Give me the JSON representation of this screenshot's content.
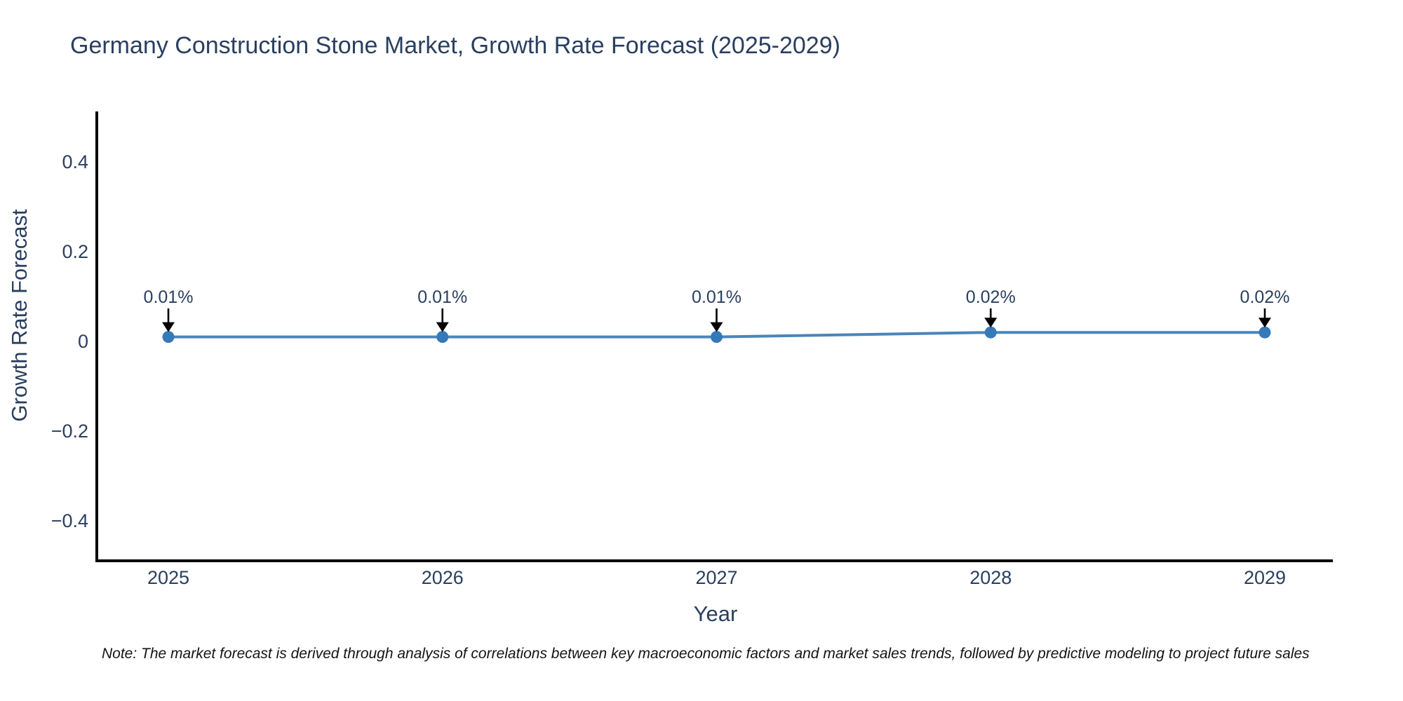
{
  "title": "Germany Construction Stone Market, Growth Rate Forecast (2025-2029)",
  "note": {
    "text": "Note: The market forecast is derived through analysis of correlations between key macroeconomic factors and market sales trends, followed by predictive modeling to project future sales"
  },
  "colors": {
    "title_text": "#2a3f5f",
    "axis_text": "#2a3f5f",
    "axis_line": "#000000",
    "series_line": "#4a85ba",
    "marker": "#3679b9",
    "arrow": "#000000",
    "annotation_text": "#2a3f5f",
    "note_text": "#141414",
    "background": "#ffffff"
  },
  "chart_data": {
    "type": "line",
    "title": "Germany Construction Stone Market, Growth Rate Forecast (2025-2029)",
    "xlabel": "Year",
    "ylabel": "Growth Rate Forecast",
    "categories": [
      "2025",
      "2026",
      "2027",
      "2028",
      "2029"
    ],
    "values": [
      0.01,
      0.01,
      0.01,
      0.02,
      0.02
    ],
    "point_labels": [
      "0.01%",
      "0.01%",
      "0.01%",
      "0.02%",
      "0.02%"
    ],
    "ytick_labels": [
      "0.4",
      "0.2",
      "0",
      "−0.2",
      "−0.4"
    ],
    "ytick_values": [
      0.4,
      0.2,
      0,
      -0.2,
      -0.4
    ],
    "ylim": [
      -0.49,
      0.515
    ],
    "grid": false,
    "legend": "none",
    "marker_style": "circle",
    "annotations_have_arrows": true
  }
}
